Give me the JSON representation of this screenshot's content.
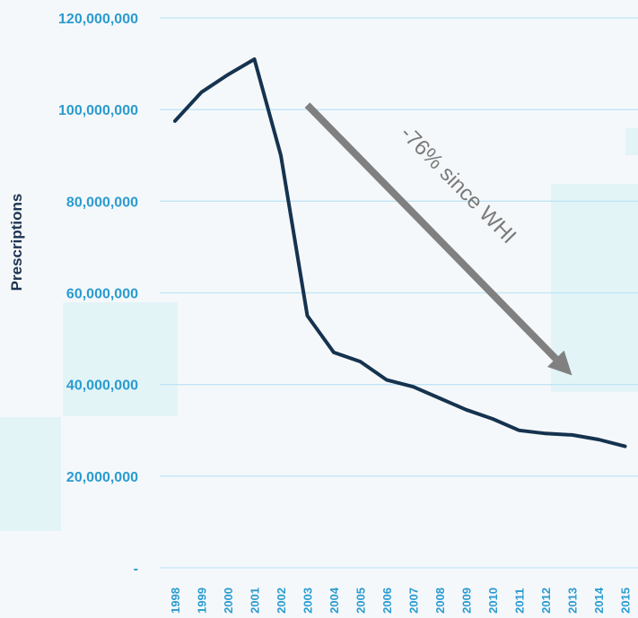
{
  "colors": {
    "background": "#f5f8fa",
    "gridline": "#bfe4f5",
    "tick_text": "#2a9bd0",
    "series_line": "#15334f",
    "arrow": "#808080",
    "annotation_text": "#7a7a7a",
    "decor_tint": "#dff3f6"
  },
  "chart_data": {
    "type": "line",
    "title": "",
    "xlabel": "",
    "ylabel": "Prescriptions",
    "ylim": [
      0,
      120000000
    ],
    "grid": true,
    "legend": "none",
    "y_ticks": [
      {
        "value": 0,
        "label": "-"
      },
      {
        "value": 20000000,
        "label": "20,000,000"
      },
      {
        "value": 40000000,
        "label": "40,000,000"
      },
      {
        "value": 60000000,
        "label": "60,000,000"
      },
      {
        "value": 80000000,
        "label": "80,000,000"
      },
      {
        "value": 100000000,
        "label": "100,000,000"
      },
      {
        "value": 120000000,
        "label": "120,000,000"
      }
    ],
    "categories": [
      "1998",
      "1999",
      "2000",
      "2001",
      "2002",
      "2003",
      "2004",
      "2005",
      "2006",
      "2007",
      "2008",
      "2009",
      "2010",
      "2011",
      "2012",
      "2013",
      "2014",
      "2015"
    ],
    "series": [
      {
        "values": [
          97500000,
          103800000,
          107600000,
          111000000,
          90000000,
          55000000,
          47000000,
          45000000,
          41000000,
          39500000,
          37000000,
          34500000,
          32500000,
          30000000,
          29300000,
          29000000,
          28000000,
          26500000
        ]
      }
    ],
    "annotation": {
      "text": "-76% since WHI",
      "arrow_from": {
        "category": "2003",
        "value": 101000000
      },
      "arrow_to": {
        "category": "2013",
        "value": 42000000
      }
    }
  }
}
